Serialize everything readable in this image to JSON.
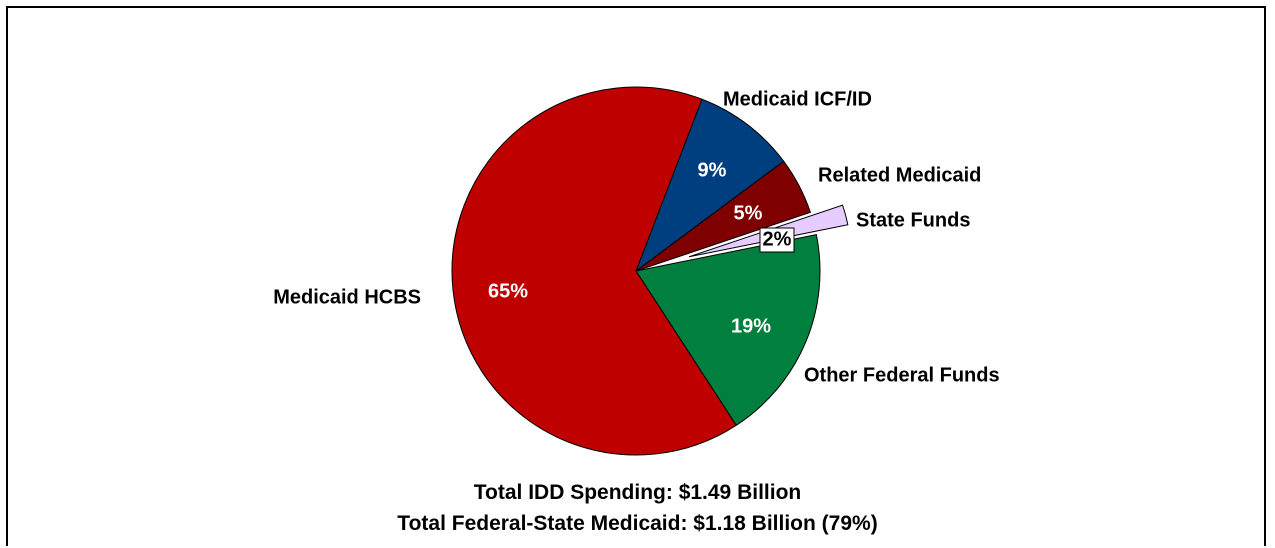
{
  "chart_data": {
    "type": "pie",
    "title": "",
    "slices": [
      {
        "label": "Medicaid ICF/ID",
        "value": 9,
        "value_label": "9%",
        "color": "#003F7F"
      },
      {
        "label": "Related Medicaid",
        "value": 5,
        "value_label": "5%",
        "color": "#7F0000"
      },
      {
        "label": "State Funds",
        "value": 2,
        "value_label": "2%",
        "color": "#E6CCFF",
        "exploded": true
      },
      {
        "label": "Other Federal Funds",
        "value": 19,
        "value_label": "19%",
        "color": "#007F3F"
      },
      {
        "label": "Medicaid HCBS",
        "value": 65,
        "value_label": "65%",
        "color": "#BF0000"
      }
    ]
  },
  "footer": {
    "line1": "Total IDD Spending: $1.49 Billion",
    "line2": "Total Federal-State Medicaid: $1.18 Billion (79%)"
  }
}
